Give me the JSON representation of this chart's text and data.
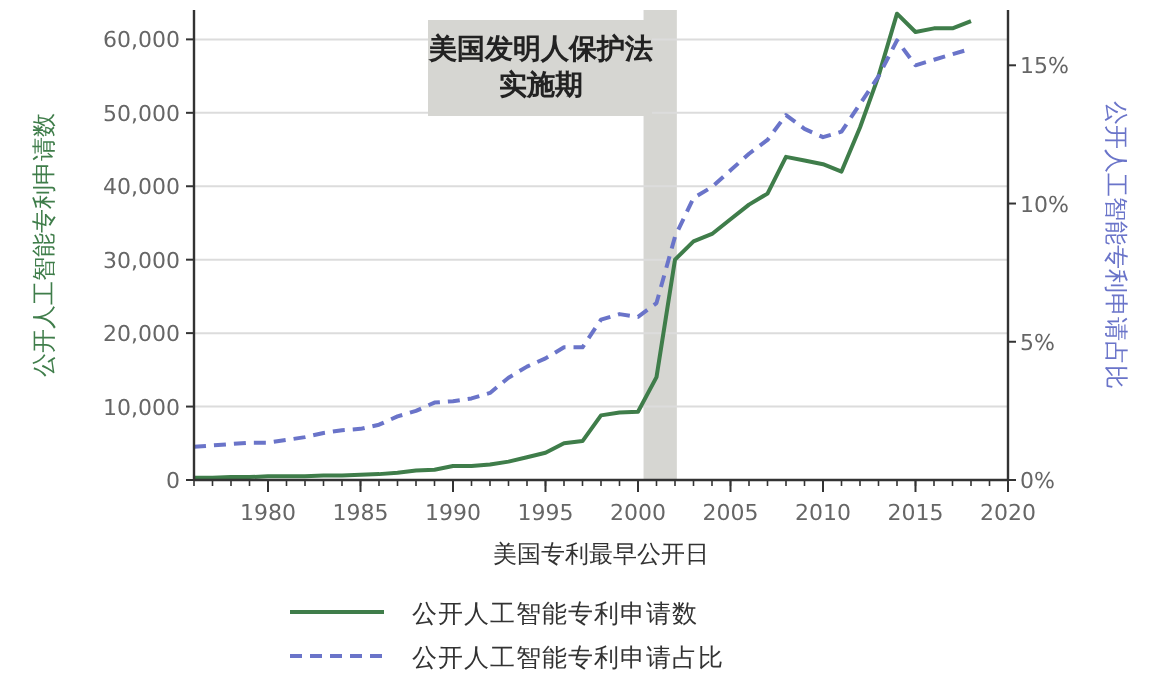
{
  "chart_data": {
    "type": "line",
    "xlabel": "美国专利最早公开日",
    "ylabel": "公开人工智能专利申请数",
    "y2label": "公开人工智能专利申请占比",
    "x": [
      1976,
      1977,
      1978,
      1979,
      1980,
      1981,
      1982,
      1983,
      1984,
      1985,
      1986,
      1987,
      1988,
      1989,
      1990,
      1991,
      1992,
      1993,
      1994,
      1995,
      1996,
      1997,
      1998,
      1999,
      2000,
      2001,
      2002,
      2003,
      2004,
      2005,
      2006,
      2007,
      2008,
      2009,
      2010,
      2011,
      2012,
      2013,
      2014,
      2015,
      2016,
      2017,
      2018
    ],
    "series": [
      {
        "name": "公开人工智能专利申请数",
        "color": "#3f7d4a",
        "line_style": "solid",
        "values": [
          300,
          300,
          400,
          400,
          500,
          500,
          500,
          600,
          600,
          700,
          800,
          1000,
          1300,
          1400,
          1900,
          1900,
          2100,
          2500,
          3100,
          3700,
          5000,
          5300,
          8800,
          9200,
          9300,
          14000,
          30000,
          32500,
          33500,
          35500,
          37500,
          39000,
          44000,
          43500,
          43000,
          42000,
          48000,
          55000,
          63500,
          61000,
          61500,
          61500,
          62500
        ]
      },
      {
        "name": "公开人工智能专利申请占比",
        "color": "#6a74c9",
        "line_style": "dashed",
        "axis": "y2",
        "values": [
          1.2,
          1.25,
          1.3,
          1.35,
          1.35,
          1.45,
          1.55,
          1.7,
          1.8,
          1.85,
          2.0,
          2.3,
          2.5,
          2.8,
          2.85,
          2.95,
          3.15,
          3.7,
          4.1,
          4.4,
          4.8,
          4.8,
          5.8,
          6.0,
          5.9,
          6.4,
          8.8,
          10.2,
          10.6,
          11.2,
          11.8,
          12.3,
          13.2,
          12.7,
          12.4,
          12.6,
          13.6,
          14.6,
          15.9,
          15.0,
          15.2,
          15.4,
          15.6
        ]
      }
    ],
    "xlim": [
      1976,
      2020
    ],
    "xticks": [
      1980,
      1985,
      1990,
      1995,
      2000,
      2005,
      2010,
      2015,
      2020
    ],
    "ylim": [
      0,
      64000
    ],
    "yticks": [
      0,
      {
        "value": 10000,
        "label": "10,000"
      },
      {
        "value": 20000,
        "label": "20,000"
      },
      {
        "value": 30000,
        "label": "30,000"
      },
      {
        "value": 40000,
        "label": "40,000"
      },
      {
        "value": 50000,
        "label": "50,000"
      },
      {
        "value": 60000,
        "label": "60,000"
      }
    ],
    "y2lim": [
      0,
      17
    ],
    "y2ticks": [
      {
        "value": 0,
        "label": "0%"
      },
      {
        "value": 5,
        "label": "5%"
      },
      {
        "value": 10,
        "label": "10%"
      },
      {
        "value": 15,
        "label": "15%"
      }
    ],
    "bands": [
      {
        "axis": "x",
        "from": 2000.3,
        "to": 2002.1,
        "label": "美国发明人保护法实施期",
        "color": "#d6d6d2"
      }
    ],
    "grid": "y",
    "legend": "bottom",
    "marker": "none"
  }
}
